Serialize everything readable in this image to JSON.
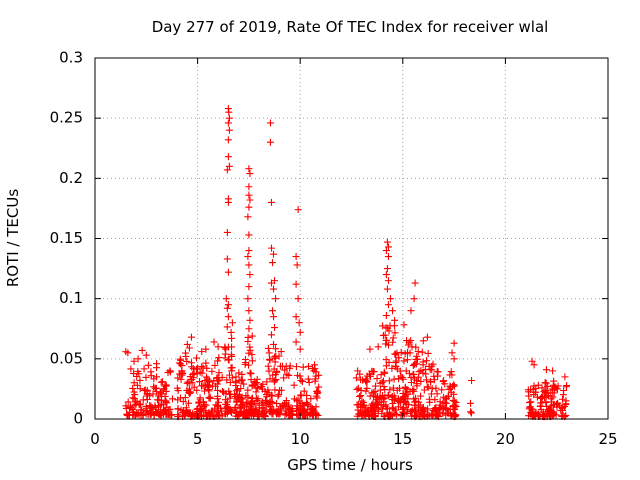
{
  "chart_data": {
    "type": "scatter",
    "title": "Day 277 of 2019, Rate Of TEC Index for receiver wlal",
    "xlabel": "GPS time / hours",
    "ylabel": "ROTI / TECUs",
    "xlim": [
      0,
      25
    ],
    "ylim": [
      0,
      0.3
    ],
    "x_ticks": [
      0,
      5,
      10,
      15,
      20,
      25
    ],
    "x_tick_labels": [
      "0",
      "5",
      "10",
      "15",
      "20",
      "25"
    ],
    "y_ticks": [
      0,
      0.05,
      0.1,
      0.15,
      0.2,
      0.25,
      0.3
    ],
    "y_tick_labels": [
      "0",
      "0.05",
      "0.1",
      "0.15",
      "0.2",
      "0.25",
      "0.3"
    ],
    "grid": true,
    "marker": "+",
    "color": "#ff0000",
    "series": [
      {
        "name": "ROTI",
        "points": [
          [
            1.5,
            0.056
          ],
          [
            1.6,
            0.055
          ],
          [
            6.5,
            0.258
          ],
          [
            6.52,
            0.255
          ],
          [
            6.55,
            0.25
          ],
          [
            6.5,
            0.246
          ],
          [
            6.55,
            0.24
          ],
          [
            6.5,
            0.232
          ],
          [
            6.5,
            0.218
          ],
          [
            6.55,
            0.21
          ],
          [
            6.45,
            0.207
          ],
          [
            6.5,
            0.183
          ],
          [
            6.5,
            0.18
          ],
          [
            6.45,
            0.155
          ],
          [
            6.45,
            0.133
          ],
          [
            6.5,
            0.122
          ],
          [
            6.4,
            0.1
          ],
          [
            6.5,
            0.095
          ],
          [
            6.45,
            0.092
          ],
          [
            6.5,
            0.085
          ],
          [
            7.5,
            0.208
          ],
          [
            7.55,
            0.204
          ],
          [
            7.5,
            0.193
          ],
          [
            7.5,
            0.186
          ],
          [
            7.55,
            0.182
          ],
          [
            7.5,
            0.176
          ],
          [
            7.45,
            0.168
          ],
          [
            7.5,
            0.153
          ],
          [
            7.5,
            0.14
          ],
          [
            7.45,
            0.135
          ],
          [
            7.5,
            0.128
          ],
          [
            7.55,
            0.12
          ],
          [
            7.5,
            0.11
          ],
          [
            7.45,
            0.1
          ],
          [
            7.5,
            0.09
          ],
          [
            7.55,
            0.082
          ],
          [
            7.5,
            0.075
          ],
          [
            8.55,
            0.246
          ],
          [
            8.55,
            0.23
          ],
          [
            8.6,
            0.18
          ],
          [
            8.6,
            0.142
          ],
          [
            8.7,
            0.137
          ],
          [
            8.65,
            0.13
          ],
          [
            8.75,
            0.115
          ],
          [
            8.6,
            0.113
          ],
          [
            8.7,
            0.108
          ],
          [
            8.8,
            0.1
          ],
          [
            8.65,
            0.09
          ],
          [
            8.7,
            0.085
          ],
          [
            8.75,
            0.076
          ],
          [
            8.6,
            0.07
          ],
          [
            8.7,
            0.062
          ],
          [
            9.9,
            0.174
          ],
          [
            9.8,
            0.135
          ],
          [
            9.85,
            0.128
          ],
          [
            9.8,
            0.112
          ],
          [
            9.9,
            0.1
          ],
          [
            9.8,
            0.085
          ],
          [
            9.95,
            0.08
          ],
          [
            10.0,
            0.072
          ],
          [
            14.25,
            0.147
          ],
          [
            14.3,
            0.143
          ],
          [
            14.2,
            0.14
          ],
          [
            14.3,
            0.135
          ],
          [
            14.25,
            0.125
          ],
          [
            14.2,
            0.12
          ],
          [
            14.3,
            0.115
          ],
          [
            14.25,
            0.108
          ],
          [
            14.4,
            0.1
          ],
          [
            14.3,
            0.095
          ],
          [
            14.5,
            0.09
          ],
          [
            14.2,
            0.086
          ],
          [
            14.6,
            0.082
          ],
          [
            15.6,
            0.113
          ],
          [
            15.55,
            0.1
          ],
          [
            15.4,
            0.09
          ],
          [
            16.2,
            0.068
          ],
          [
            16.0,
            0.065
          ],
          [
            17.5,
            0.063
          ],
          [
            18.35,
            0.032
          ],
          [
            18.3,
            0.013
          ],
          [
            18.3,
            0.006
          ],
          [
            18.35,
            0.005
          ],
          [
            21.3,
            0.048
          ],
          [
            21.4,
            0.045
          ],
          [
            22.0,
            0.041
          ],
          [
            22.3,
            0.04
          ],
          [
            22.9,
            0.035
          ]
        ],
        "clusters": [
          {
            "x": [
              1.5,
              3.8
            ],
            "y": [
              0.003,
              0.045
            ],
            "n": 150,
            "top": [
              [
                2.3,
                0.057
              ],
              [
                2.5,
                0.053
              ],
              [
                2.1,
                0.05
              ],
              [
                1.9,
                0.048
              ],
              [
                3.0,
                0.046
              ]
            ]
          },
          {
            "x": [
              4.0,
              6.3
            ],
            "y": [
              0.002,
              0.055
            ],
            "n": 180,
            "top": [
              [
                4.7,
                0.068
              ],
              [
                4.5,
                0.062
              ],
              [
                4.6,
                0.059
              ],
              [
                5.2,
                0.056
              ],
              [
                5.8,
                0.064
              ],
              [
                6.0,
                0.06
              ],
              [
                5.4,
                0.058
              ]
            ]
          },
          {
            "x": [
              6.3,
              6.7
            ],
            "y": [
              0.004,
              0.08
            ],
            "n": 45
          },
          {
            "x": [
              6.7,
              7.3
            ],
            "y": [
              0.002,
              0.04
            ],
            "n": 50
          },
          {
            "x": [
              7.3,
              7.7
            ],
            "y": [
              0.003,
              0.07
            ],
            "n": 55
          },
          {
            "x": [
              7.7,
              8.4
            ],
            "y": [
              0.002,
              0.035
            ],
            "n": 55
          },
          {
            "x": [
              8.4,
              9.1
            ],
            "y": [
              0.004,
              0.06
            ],
            "n": 60
          },
          {
            "x": [
              9.1,
              10.9
            ],
            "y": [
              0.003,
              0.045
            ],
            "n": 130,
            "top": [
              [
                9.8,
                0.064
              ],
              [
                10.0,
                0.058
              ],
              [
                10.7,
                0.045
              ],
              [
                10.6,
                0.042
              ]
            ]
          },
          {
            "x": [
              12.7,
              14.0
            ],
            "y": [
              0.002,
              0.04
            ],
            "n": 100,
            "top": [
              [
                13.4,
                0.058
              ],
              [
                13.8,
                0.06
              ],
              [
                12.8,
                0.04
              ]
            ]
          },
          {
            "x": [
              14.0,
              15.5
            ],
            "y": [
              0.002,
              0.08
            ],
            "n": 140
          },
          {
            "x": [
              15.5,
              16.5
            ],
            "y": [
              0.002,
              0.06
            ],
            "n": 90
          },
          {
            "x": [
              16.5,
              17.6
            ],
            "y": [
              0.002,
              0.04
            ],
            "n": 80,
            "top": [
              [
                17.4,
                0.055
              ],
              [
                17.5,
                0.05
              ]
            ]
          },
          {
            "x": [
              21.1,
              23.0
            ],
            "y": [
              0.002,
              0.032
            ],
            "n": 140
          }
        ]
      }
    ]
  }
}
